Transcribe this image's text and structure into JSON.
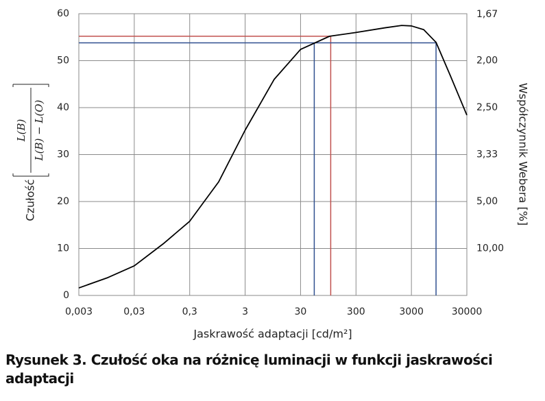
{
  "chart_data": {
    "type": "line",
    "x_scale": "log",
    "y2_scale": "reciprocal",
    "y_label": "Czułość",
    "y_label_numerator": "L(B)",
    "y_label_denominator": "L(B) − L(O)",
    "y2_label": "Współczynnik Webera [%]",
    "x_label": "Jaskrawość adaptacji [cd/m²]",
    "caption": "Rysunek 3. Czułość oka na różnicę luminacji w funkcji jaskrawości adaptacji",
    "grid": true,
    "x": [
      0.003,
      0.01,
      0.03,
      0.1,
      0.3,
      1,
      3,
      10,
      30,
      100,
      300,
      1000,
      2000,
      3000,
      5000,
      8340,
      15000,
      30000
    ],
    "series": [
      {
        "color": "#000000",
        "values": [
          1.6,
          3.8,
          6.3,
          11,
          15.8,
          24.2,
          35.2,
          46,
          52.4,
          55.2,
          56,
          57,
          57.5,
          57.4,
          56.6,
          53.9,
          46.9,
          38.4
        ]
      }
    ],
    "reference_lines": [
      {
        "color": "#c0504d",
        "x": [
          105
        ],
        "y": 55.2
      },
      {
        "color": "#2f4f8f",
        "x": [
          53,
          8340
        ],
        "y": 53.8
      }
    ],
    "xlim": [
      0.003,
      30000
    ],
    "xticks": [
      {
        "value": 0.003,
        "label": "0,003"
      },
      {
        "value": 0.03,
        "label": "0,03"
      },
      {
        "value": 0.3,
        "label": "0,3"
      },
      3,
      30,
      300,
      3000,
      30000
    ],
    "ylim": [
      0,
      60
    ],
    "yticks": [
      0,
      10,
      20,
      30,
      40,
      50,
      60
    ],
    "y2ticks": [
      {
        "value": 1.67,
        "label": "1,67"
      },
      {
        "value": 2,
        "label": "2,00"
      },
      {
        "value": 2.5,
        "label": "2,50"
      },
      {
        "value": 3.33,
        "label": "3,33"
      },
      {
        "value": 5,
        "label": "5,00"
      },
      {
        "value": 10,
        "label": "10,00"
      }
    ]
  }
}
